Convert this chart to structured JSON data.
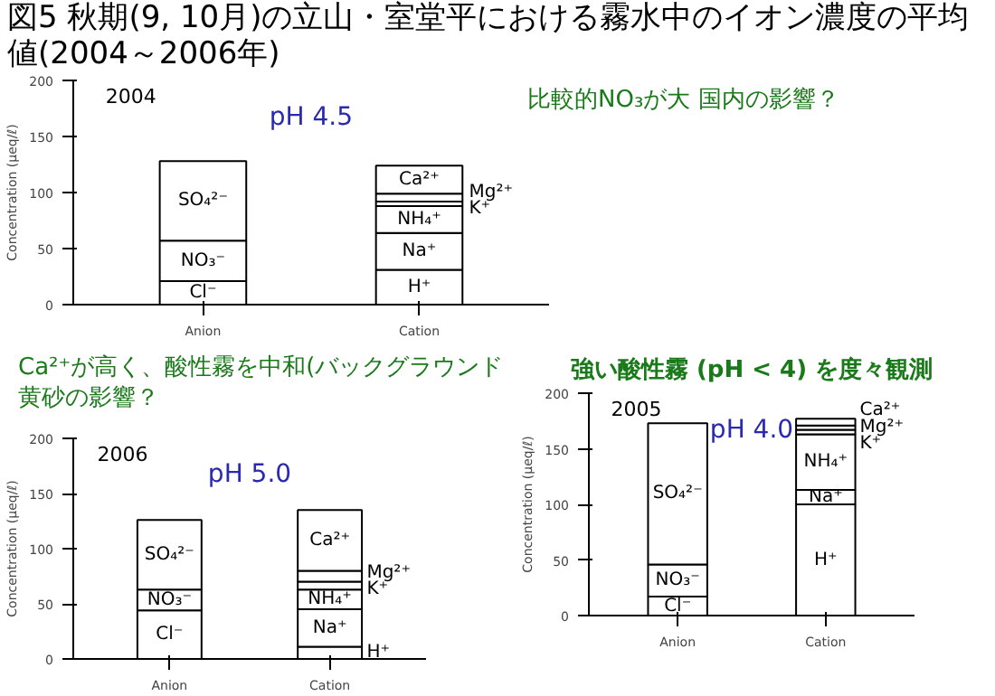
{
  "chart_data": [
    {
      "type": "bar",
      "title": "図5 秋期(9, 10月)の立山・室堂平における霧水中のイオン濃度の平均値(2004～2006年)",
      "subtitle": "比較的NO₃が大 国内の影響？",
      "annotations": [
        "2004",
        "pH 4.5"
      ],
      "ylabel": "Concentration (μeq/ℓ)",
      "categories": [
        "Anion",
        "Cation"
      ],
      "stacked": true,
      "ylim": [
        0,
        200
      ],
      "yticks": [
        0,
        50,
        100,
        150,
        200
      ],
      "series": [
        {
          "name": "Cl⁻",
          "color": "#ffffff",
          "values": [
            21,
            null
          ]
        },
        {
          "name": "NO₃⁻",
          "color": "#ffffff",
          "values": [
            36,
            null
          ]
        },
        {
          "name": "SO₄²⁻",
          "color": "#ffffff",
          "values": [
            71,
            null
          ]
        },
        {
          "name": "H⁺",
          "color": "#ffffff",
          "values": [
            null,
            31
          ]
        },
        {
          "name": "Na⁺",
          "color": "#ffffff",
          "values": [
            null,
            33
          ]
        },
        {
          "name": "NH₄⁺",
          "color": "#ffffff",
          "values": [
            null,
            24
          ]
        },
        {
          "name": "K⁺",
          "color": "#ffffff",
          "values": [
            null,
            4
          ]
        },
        {
          "name": "Mg²⁺",
          "color": "#ffffff",
          "values": [
            null,
            7
          ]
        },
        {
          "name": "Ca²⁺",
          "color": "#ffffff",
          "values": [
            null,
            25
          ]
        }
      ]
    },
    {
      "type": "bar",
      "subtitle": "強い酸性霧 (pH < 4) を度々観測",
      "annotations": [
        "2005",
        "pH 4.0"
      ],
      "ylabel": "Concentration (μeq/ℓ)",
      "categories": [
        "Anion",
        "Cation"
      ],
      "stacked": true,
      "ylim": [
        0,
        200
      ],
      "yticks": [
        0,
        50,
        100,
        150,
        200
      ],
      "series": [
        {
          "name": "Cl⁻",
          "color": "#ffffff",
          "values": [
            17,
            null
          ]
        },
        {
          "name": "NO₃⁻",
          "color": "#ffffff",
          "values": [
            29,
            null
          ]
        },
        {
          "name": "SO₄²⁻",
          "color": "#ffffff",
          "values": [
            127,
            null
          ]
        },
        {
          "name": "H⁺",
          "color": "#ffffff",
          "values": [
            null,
            100
          ]
        },
        {
          "name": "Na⁺",
          "color": "#ffffff",
          "values": [
            null,
            13
          ]
        },
        {
          "name": "NH₄⁺",
          "color": "#ffffff",
          "values": [
            null,
            50
          ]
        },
        {
          "name": "K⁺",
          "color": "#ffffff",
          "values": [
            null,
            4
          ]
        },
        {
          "name": "Mg²⁺",
          "color": "#ffffff",
          "values": [
            null,
            4
          ]
        },
        {
          "name": "Ca²⁺",
          "color": "#ffffff",
          "values": [
            null,
            6
          ]
        }
      ]
    },
    {
      "type": "bar",
      "subtitle": "Ca²⁺が高く、酸性霧を中和(バックグラウンド黄砂の影響？",
      "annotations": [
        "2006",
        "pH 5.0"
      ],
      "ylabel": "Concentration (μeq/ℓ)",
      "categories": [
        "Anion",
        "Cation"
      ],
      "stacked": true,
      "ylim": [
        0,
        200
      ],
      "yticks": [
        0,
        50,
        100,
        150,
        200
      ],
      "series": [
        {
          "name": "Cl⁻",
          "color": "#ffffff",
          "values": [
            44,
            null
          ]
        },
        {
          "name": "NO₃⁻",
          "color": "#ffffff",
          "values": [
            19,
            null
          ]
        },
        {
          "name": "SO₄²⁻",
          "color": "#ffffff",
          "values": [
            63,
            null
          ]
        },
        {
          "name": "H⁺",
          "color": "#ffffff",
          "values": [
            null,
            11
          ]
        },
        {
          "name": "Na⁺",
          "color": "#ffffff",
          "values": [
            null,
            34
          ]
        },
        {
          "name": "NH₄⁺",
          "color": "#ffffff",
          "values": [
            null,
            18
          ]
        },
        {
          "name": "K⁺",
          "color": "#ffffff",
          "values": [
            null,
            7
          ]
        },
        {
          "name": "Mg²⁺",
          "color": "#ffffff",
          "values": [
            null,
            10
          ]
        },
        {
          "name": "Ca²⁺",
          "color": "#ffffff",
          "values": [
            null,
            55
          ]
        }
      ]
    }
  ]
}
